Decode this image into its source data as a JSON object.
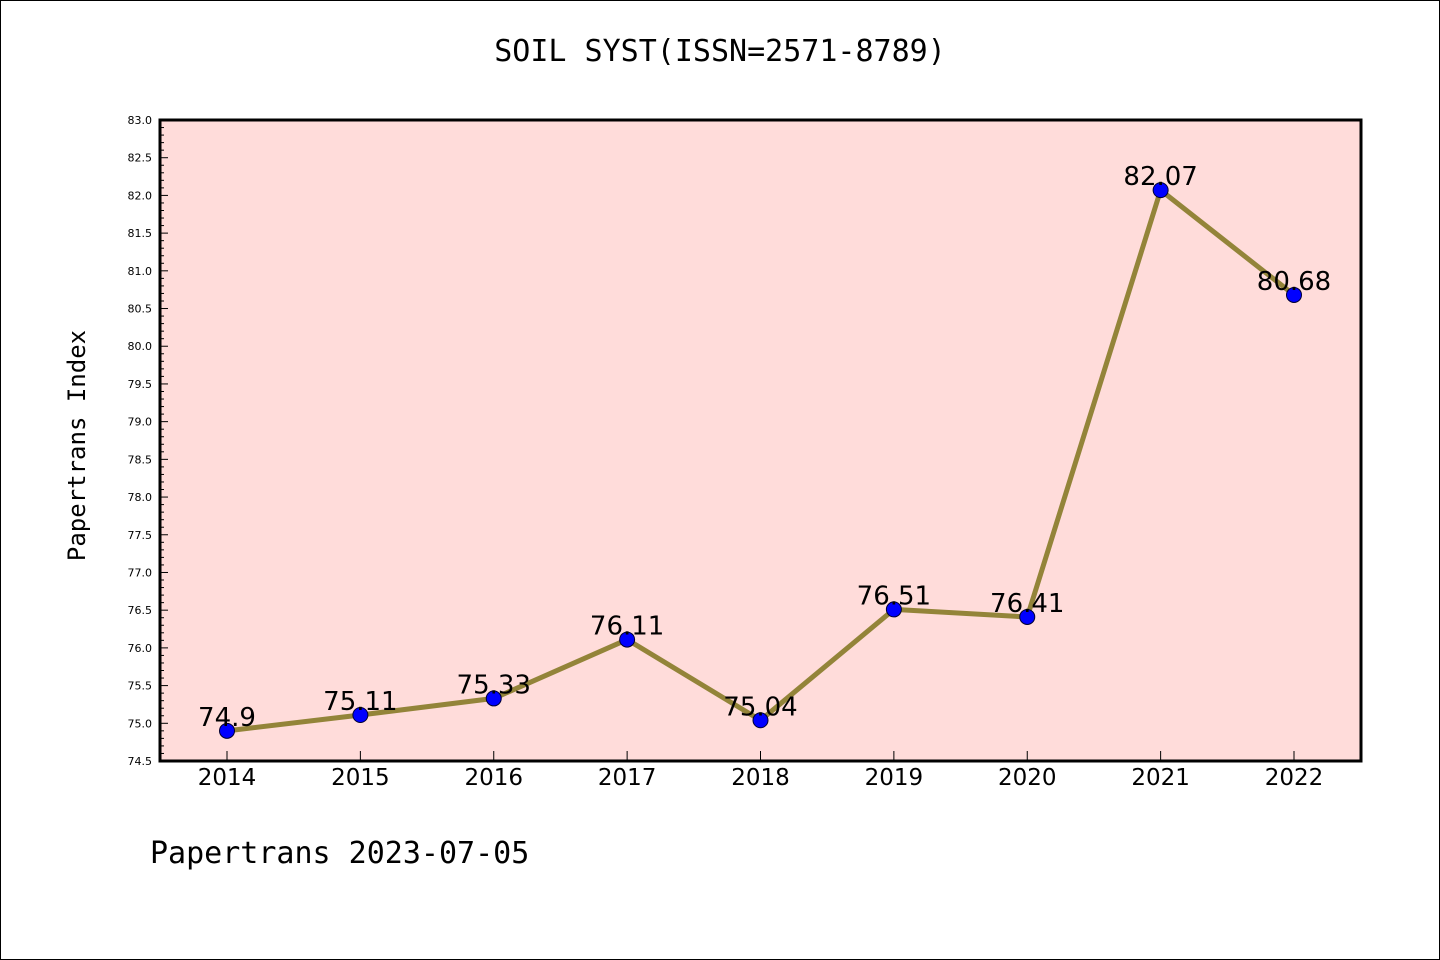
{
  "title": "SOIL SYST(ISSN=2571-8789)",
  "footer": "Papertrans 2023-07-05",
  "colors": {
    "plot_background": "#FFDCDA",
    "line": "#938439",
    "marker": "#0000FF"
  },
  "chart_data": {
    "type": "line",
    "title": "SOIL SYST(ISSN=2571-8789)",
    "xlabel": "",
    "ylabel": "Papertrans Index",
    "categories": [
      "2014",
      "2015",
      "2016",
      "2017",
      "2018",
      "2019",
      "2020",
      "2021",
      "2022"
    ],
    "series": [
      {
        "values": [
          74.9,
          75.11,
          75.33,
          76.11,
          75.04,
          76.51,
          76.41,
          82.07,
          80.68
        ],
        "labels": [
          "74.9",
          "75.11",
          "75.33",
          "76.11",
          "75.04",
          "76.51",
          "76.41",
          "82.07",
          "80.68"
        ]
      }
    ],
    "ylim": [
      74.5,
      83.0
    ],
    "yticks": [
      "74.5",
      "75.0",
      "75.5",
      "76.0",
      "76.5",
      "77.0",
      "77.5",
      "78.0",
      "78.5",
      "79.0",
      "79.5",
      "80.0",
      "80.5",
      "81.0",
      "81.5",
      "82.0",
      "82.5",
      "83.0"
    ],
    "grid": false,
    "legend": "none"
  }
}
